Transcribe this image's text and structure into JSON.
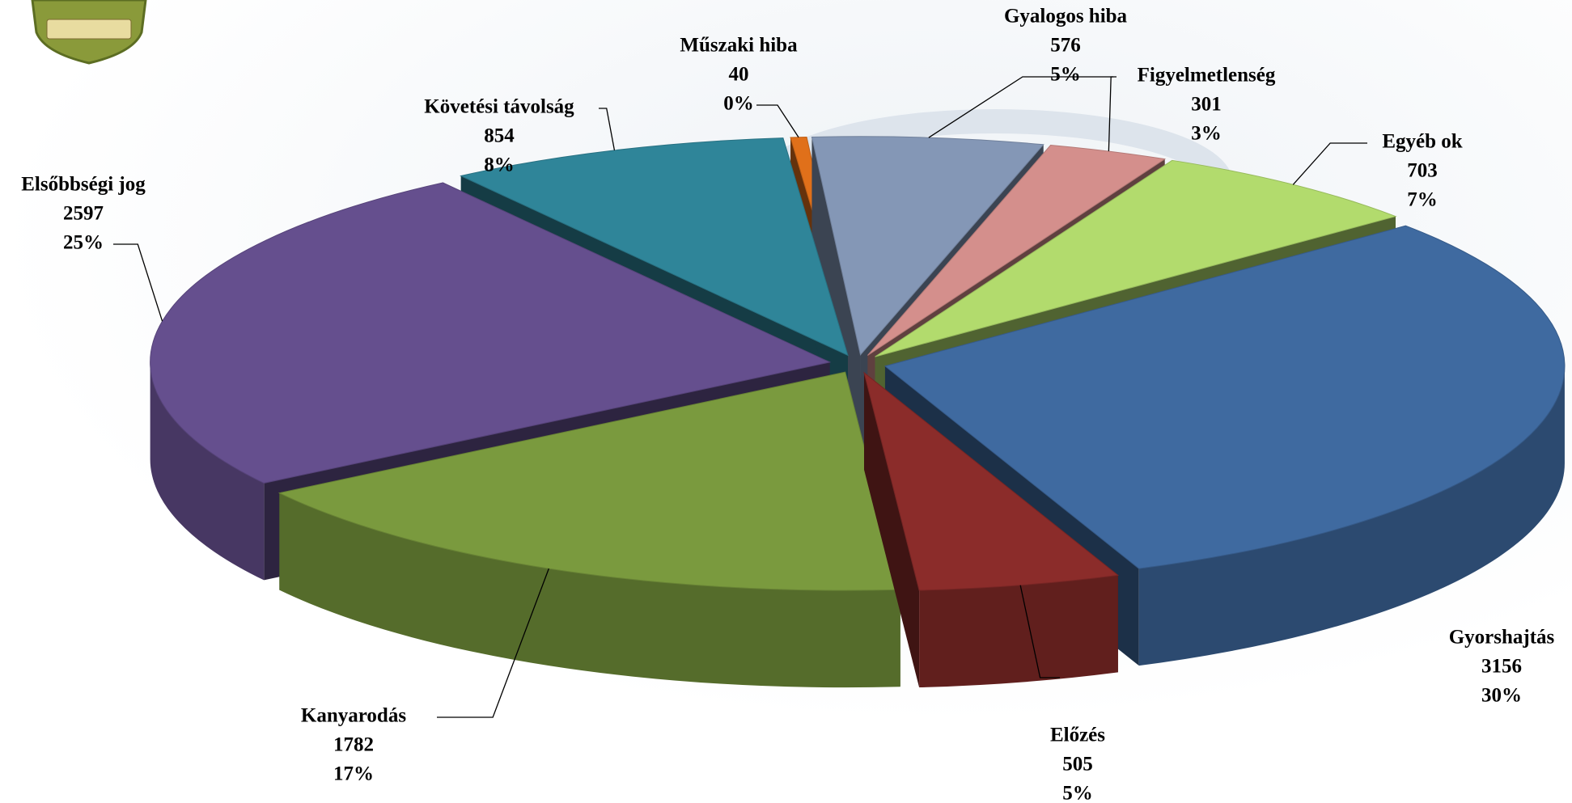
{
  "chart_data": {
    "type": "pie",
    "categories": [
      "Gyorshajtás",
      "Előzés",
      "Kanyarodás",
      "Elsőbbségi jog",
      "Követési távolság",
      "Műszaki hiba",
      "Gyalogos hiba",
      "Figyelmetlenség",
      "Egyéb ok"
    ],
    "values": [
      3156,
      505,
      1782,
      2597,
      854,
      40,
      576,
      301,
      703
    ],
    "percent_labels": [
      "30%",
      "5%",
      "17%",
      "25%",
      "8%",
      "0%",
      "5%",
      "3%",
      "7%"
    ],
    "colors": [
      "#3f6aa0",
      "#8b2c2a",
      "#7a9a3e",
      "#654f8e",
      "#2f8599",
      "#e0701a",
      "#8497b6",
      "#d48f8c",
      "#b2db6d"
    ]
  }
}
